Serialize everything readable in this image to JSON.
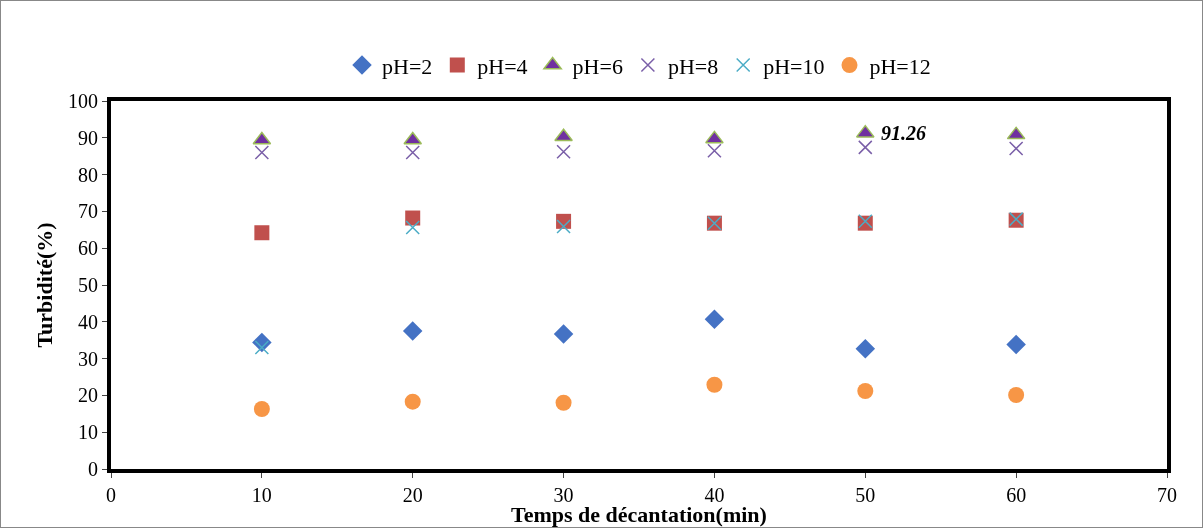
{
  "chart_data": {
    "type": "scatter",
    "xlabel": "Temps de décantation(min)",
    "ylabel": "Turbidité(%)",
    "x": [
      10,
      20,
      30,
      40,
      50,
      60
    ],
    "series": [
      {
        "name": "pH=2",
        "color": "#4472c4",
        "marker": "diamond",
        "values": [
          34.4,
          37.5,
          36.7,
          40.7,
          32.7,
          33.8
        ]
      },
      {
        "name": "pH=4",
        "color": "#c0504d",
        "marker": "square",
        "values": [
          64.2,
          68.2,
          67.3,
          66.8,
          66.8,
          67.6
        ]
      },
      {
        "name": "pH=6",
        "color": "#7030a0",
        "marker": "triangle",
        "values": [
          89.4,
          89.4,
          90.3,
          89.7,
          91.26,
          90.8
        ]
      },
      {
        "name": "pH=8",
        "color": "#7a5fa8",
        "marker": "cross",
        "values": [
          86,
          86,
          86.2,
          86.5,
          87.4,
          87.1
        ]
      },
      {
        "name": "pH=10",
        "color": "#4bacc6",
        "marker": "cross",
        "values": [
          33,
          65.6,
          65.9,
          66.8,
          67.3,
          67.9
        ]
      },
      {
        "name": "pH=12",
        "color": "#f79646",
        "marker": "circle",
        "values": [
          16.3,
          18.3,
          18,
          22.9,
          21.2,
          20.1
        ]
      }
    ],
    "annotations": [
      {
        "text": "91.26",
        "x": 50,
        "y": 91.26
      }
    ],
    "xlim": [
      0,
      70
    ],
    "xticks": [
      0,
      10,
      20,
      30,
      40,
      50,
      60,
      70
    ],
    "ylim": [
      0,
      100
    ],
    "yticks": [
      0,
      10,
      20,
      30,
      40,
      50,
      60,
      70,
      80,
      90,
      100
    ],
    "grid": false,
    "legend": "top"
  }
}
